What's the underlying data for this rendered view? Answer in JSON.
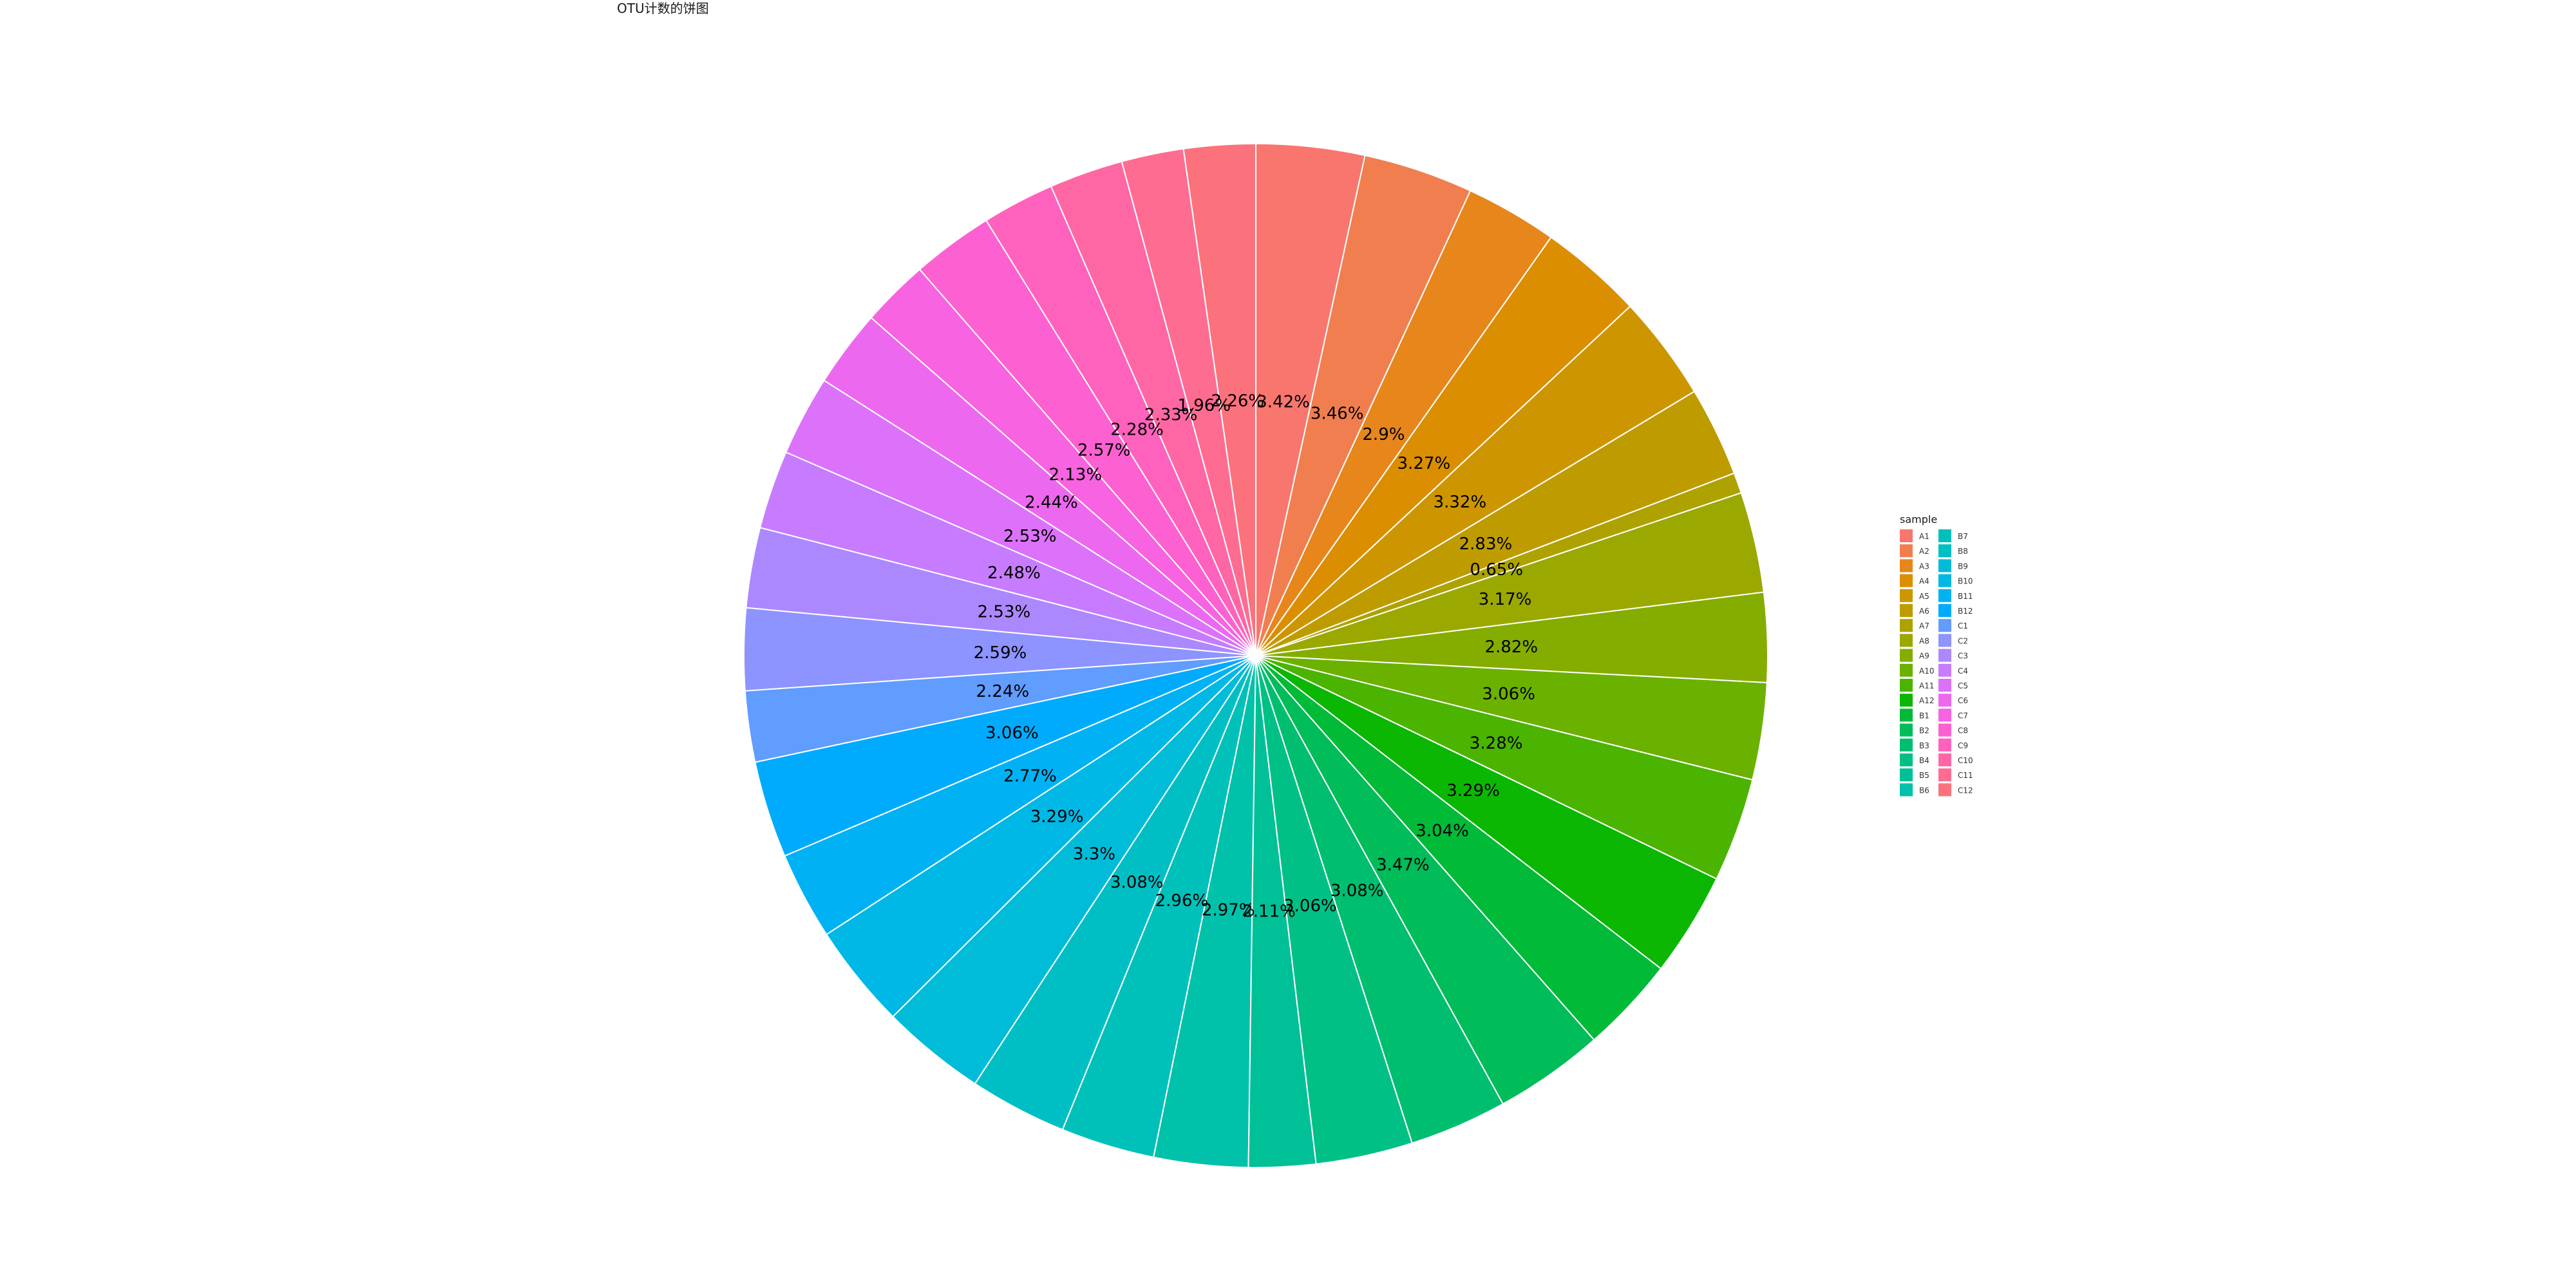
{
  "chart_data": {
    "type": "pie",
    "title": "OTU计数的饼图",
    "legend_title": "sample",
    "legend_position": "right",
    "categories": [
      "A1",
      "A2",
      "A3",
      "A4",
      "A5",
      "A6",
      "A7",
      "A8",
      "A9",
      "A10",
      "A11",
      "A12",
      "B1",
      "B2",
      "B3",
      "B4",
      "B5",
      "B6",
      "B7",
      "B8",
      "B9",
      "B10",
      "B11",
      "B12",
      "C1",
      "C2",
      "C3",
      "C4",
      "C5",
      "C6",
      "C7",
      "C8",
      "C9",
      "C10",
      "C11",
      "C12"
    ],
    "pie_order": [
      "C12",
      "C11",
      "C10",
      "C9",
      "C8",
      "C7",
      "C6",
      "C5",
      "C4",
      "C3",
      "C2",
      "C1",
      "B12",
      "B11",
      "B10",
      "B9",
      "B8",
      "B7",
      "B6",
      "B5",
      "B4",
      "B3",
      "B2",
      "B1",
      "A12",
      "A11",
      "A10",
      "A9",
      "A8",
      "A7",
      "A6",
      "A5",
      "A4",
      "A3",
      "A2",
      "A1"
    ],
    "values": {
      "A1": 3.42,
      "A2": 3.46,
      "A3": 2.9,
      "A4": 3.27,
      "A5": 3.32,
      "A6": 2.83,
      "A7": 0.65,
      "A8": 3.17,
      "A9": 2.82,
      "A10": 3.06,
      "A11": 3.28,
      "A12": 3.29,
      "B1": 3.04,
      "B2": 3.47,
      "B3": 3.08,
      "B4": 3.06,
      "B5": 2.11,
      "B6": 2.97,
      "B7": 2.96,
      "B8": 3.08,
      "B9": 3.3,
      "B10": 3.29,
      "B11": 2.77,
      "B12": 3.06,
      "C1": 2.24,
      "C2": 2.59,
      "C3": 2.53,
      "C4": 2.48,
      "C5": 2.53,
      "C6": 2.44,
      "C7": 2.13,
      "C8": 2.57,
      "C9": 2.28,
      "C10": 2.33,
      "C11": 1.96,
      "C12": 2.26
    },
    "labels": {
      "A1": "3.42%",
      "A2": "3.46%",
      "A3": "2.9%",
      "A4": "3.27%",
      "A5": "3.32%",
      "A6": "2.83%",
      "A7": "0.65%",
      "A8": "3.17%",
      "A9": "2.82%",
      "A10": "3.06%",
      "A11": "3.28%",
      "A12": "3.29%",
      "B1": "3.04%",
      "B2": "3.47%",
      "B3": "3.08%",
      "B4": "3.06%",
      "B5": "2.11%",
      "B6": "2.97%",
      "B7": "2.96%",
      "B8": "3.08%",
      "B9": "3.3%",
      "B10": "3.29%",
      "B11": "2.77%",
      "B12": "3.06%",
      "C1": "2.24%",
      "C2": "2.59%",
      "C3": "2.53%",
      "C4": "2.48%",
      "C5": "2.53%",
      "C6": "2.44%",
      "C7": "2.13%",
      "C8": "2.57%",
      "C9": "2.28%",
      "C10": "2.33%",
      "C11": "1.96%",
      "C12": "2.26%"
    },
    "colors": {
      "A1": "#F8766D",
      "A2": "#F17E4F",
      "A3": "#E7861B",
      "A4": "#DB8E00",
      "A5": "#CD9600",
      "A6": "#BE9C00",
      "A7": "#ADA200",
      "A8": "#9AA800",
      "A9": "#84AD00",
      "A10": "#6BB100",
      "A11": "#4BB400",
      "A12": "#0BB702",
      "B1": "#00BA38",
      "B2": "#00BC59",
      "B3": "#00BE70",
      "B4": "#00C085",
      "B5": "#00C097",
      "B6": "#00C1A9",
      "B7": "#00C0BA",
      "B8": "#00BFC4",
      "B9": "#00BCD8",
      "B10": "#00B8E5",
      "B11": "#00B2F3",
      "B12": "#00ABFD",
      "C1": "#619CFF",
      "C2": "#8D93FF",
      "C3": "#AC88FF",
      "C4": "#C77CFF",
      "C5": "#DC71FA",
      "C6": "#EC69EF",
      "C7": "#F763E0",
      "C8": "#FD61D1",
      "C9": "#FF62BC",
      "C10": "#FF67A4",
      "C11": "#FF6C91",
      "C12": "#FB727D"
    }
  }
}
